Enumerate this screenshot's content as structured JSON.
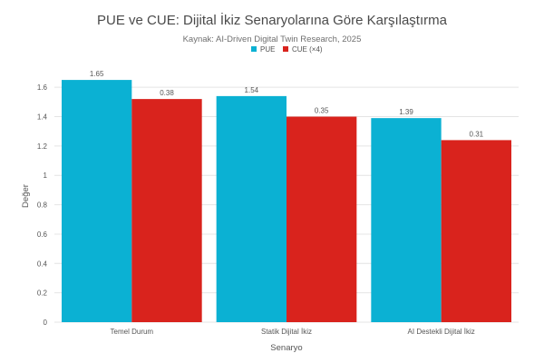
{
  "chart_data": {
    "type": "bar",
    "title": "PUE ve CUE: Dijital İkiz Senaryolarına Göre Karşılaştırma",
    "subtitle": "Kaynak: AI-Driven Digital Twin Research, 2025",
    "xlabel": "Senaryo",
    "ylabel": "Değer",
    "categories": [
      "Temel Durum",
      "Statik Dijital İkiz",
      "AI Destekli Dijital İkiz"
    ],
    "series": [
      {
        "name": "PUE",
        "color": "#0bb1d3",
        "values": [
          1.65,
          1.54,
          1.39
        ],
        "labels": [
          "1.65",
          "1.54",
          "1.39"
        ]
      },
      {
        "name": "CUE (×4)",
        "color": "#d9231d",
        "values": [
          1.52,
          1.4,
          1.24
        ],
        "labels": [
          "0.38",
          "0.35",
          "0.31"
        ]
      }
    ],
    "ylim": [
      0,
      1.7
    ],
    "yticks": [
      0,
      0.2,
      0.4,
      0.6,
      0.8,
      1,
      1.2,
      1.4,
      1.6
    ],
    "ytick_labels": [
      "0",
      "0.2",
      "0.4",
      "0.6",
      "0.8",
      "1",
      "1.2",
      "1.4",
      "1.6"
    ],
    "grid": true,
    "legend_position": "top-center"
  }
}
